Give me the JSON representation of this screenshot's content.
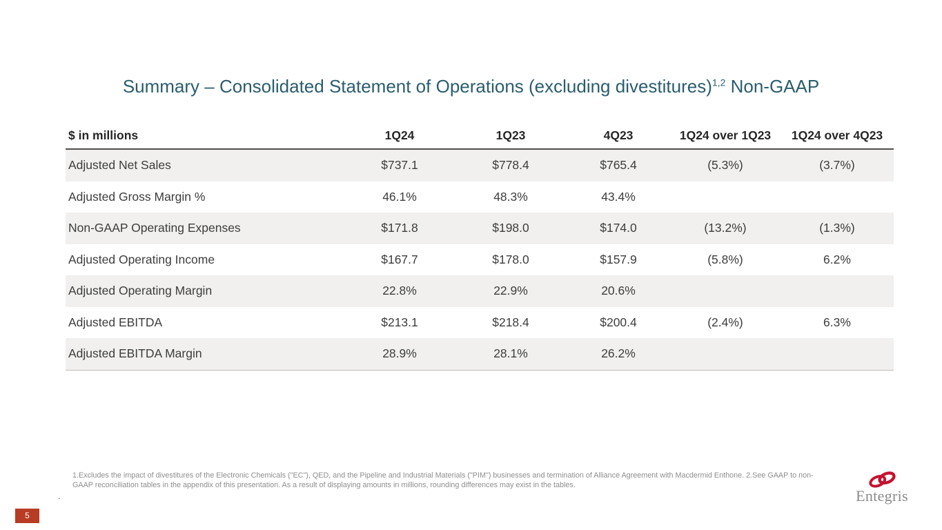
{
  "slide": {
    "title": {
      "prefix": "Summary – Consolidated Statement of Operations (excluding divestitures)",
      "superscript": "1,2",
      "suffix": " Non-GAAP"
    },
    "table": {
      "columns": [
        "$ in millions",
        "1Q24",
        "1Q23",
        "4Q23",
        "1Q24 over 1Q23",
        "1Q24 over 4Q23"
      ],
      "rows": [
        {
          "label": "Adjusted Net Sales",
          "values": [
            "$737.1",
            "$778.4",
            "$765.4",
            "(5.3%)",
            "(3.7%)"
          ]
        },
        {
          "label": "Adjusted Gross Margin %",
          "values": [
            "46.1%",
            "48.3%",
            "43.4%",
            "",
            ""
          ]
        },
        {
          "label": "Non-GAAP Operating Expenses",
          "values": [
            "$171.8",
            "$198.0",
            "$174.0",
            "(13.2%)",
            "(1.3%)"
          ]
        },
        {
          "label": "Adjusted Operating Income",
          "values": [
            "$167.7",
            "$178.0",
            "$157.9",
            "(5.8%)",
            "6.2%"
          ]
        },
        {
          "label": "Adjusted Operating Margin",
          "values": [
            "22.8%",
            "22.9%",
            "20.6%",
            "",
            ""
          ]
        },
        {
          "label": "Adjusted EBITDA",
          "values": [
            "$213.1",
            "$218.4",
            "$200.4",
            "(2.4%)",
            "6.3%"
          ]
        },
        {
          "label": "Adjusted EBITDA Margin",
          "values": [
            "28.9%",
            "28.1%",
            "26.2%",
            "",
            ""
          ]
        }
      ]
    },
    "footnote": "1.Excludes the impact of divestitures of the Electronic Chemicals (\"EC\"), QED, and the Pipeline and Industrial Materials (\"PIM\") businesses and termination of Alliance Agreement with Macdermid Enthone. 2.See GAAP to non-GAAP reconciliation tables in the appendix of this presentation. As a result of displaying amounts in millions, rounding differences may exist in the tables.",
    "footnote_marker": ".",
    "page_number": "5",
    "logo": {
      "wordmark": "Entegris",
      "icon": "entegris-rings-icon"
    },
    "colors": {
      "title_teal": "#2a5d6e",
      "row_shade": "#f1f0ee",
      "header_rule": "#4d4d4d",
      "bottom_rule": "#bdbdbd",
      "page_badge_red": "#b83b24",
      "logo_red": "#c41230",
      "wordmark_gray": "#8a8a8a"
    }
  }
}
